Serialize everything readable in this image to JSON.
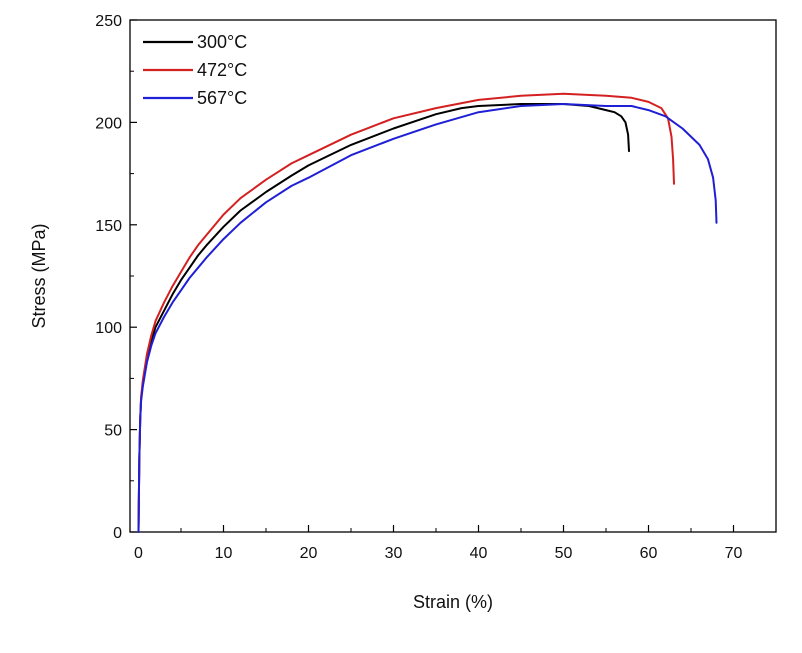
{
  "chart_data": {
    "type": "line",
    "title": "",
    "xlabel": "Strain (%)",
    "ylabel": "Stress (MPa)",
    "xlim": [
      -1,
      75
    ],
    "ylim": [
      0,
      250
    ],
    "xticks": [
      0,
      10,
      20,
      30,
      40,
      50,
      60,
      70
    ],
    "yticks": [
      0,
      50,
      100,
      150,
      200,
      250
    ],
    "grid": false,
    "legend_position": "top-left",
    "series": [
      {
        "name": "300°C",
        "color": "#000000",
        "x": [
          0.0,
          0.1,
          0.2,
          0.3,
          0.5,
          1,
          1.5,
          2,
          3,
          4,
          5,
          6,
          7,
          8,
          10,
          12,
          15,
          18,
          20,
          25,
          30,
          35,
          38,
          40,
          45,
          50,
          53,
          55,
          56,
          56.8,
          57.3,
          57.6,
          57.7
        ],
        "y": [
          0,
          35,
          55,
          65,
          72,
          85,
          93,
          100,
          108,
          116,
          123,
          129,
          135,
          140,
          149,
          157,
          166,
          174,
          179,
          189,
          197,
          204,
          207,
          208,
          209,
          209,
          208,
          206,
          205,
          203,
          200,
          194,
          186
        ]
      },
      {
        "name": "472°C",
        "color": "#d42020",
        "x": [
          0.0,
          0.1,
          0.2,
          0.3,
          0.5,
          1,
          1.5,
          2,
          3,
          4,
          5,
          6,
          7,
          8,
          10,
          12,
          15,
          18,
          20,
          25,
          30,
          35,
          40,
          45,
          50,
          55,
          58,
          60,
          61.5,
          62.3,
          62.7,
          62.9,
          63.0
        ],
        "y": [
          0,
          35,
          55,
          66,
          74,
          87,
          96,
          103,
          112,
          120,
          127,
          134,
          140,
          145,
          155,
          163,
          172,
          180,
          184,
          194,
          202,
          207,
          211,
          213,
          214,
          213,
          212,
          210,
          207,
          202,
          193,
          182,
          170
        ]
      },
      {
        "name": "567°C",
        "color": "#1f1fd6",
        "x": [
          0.0,
          0.1,
          0.2,
          0.3,
          0.5,
          1,
          1.5,
          2,
          3,
          4,
          5,
          6,
          7,
          8,
          10,
          12,
          15,
          18,
          20,
          25,
          30,
          35,
          40,
          45,
          50,
          55,
          58,
          60,
          62,
          64,
          66,
          67,
          67.6,
          67.9,
          68.0
        ],
        "y": [
          0,
          35,
          55,
          64,
          71,
          83,
          91,
          97,
          105,
          112,
          118,
          124,
          129,
          134,
          143,
          151,
          161,
          169,
          173,
          184,
          192,
          199,
          205,
          208,
          209,
          208,
          208,
          206,
          203,
          197,
          189,
          182,
          173,
          162,
          151
        ]
      }
    ]
  }
}
